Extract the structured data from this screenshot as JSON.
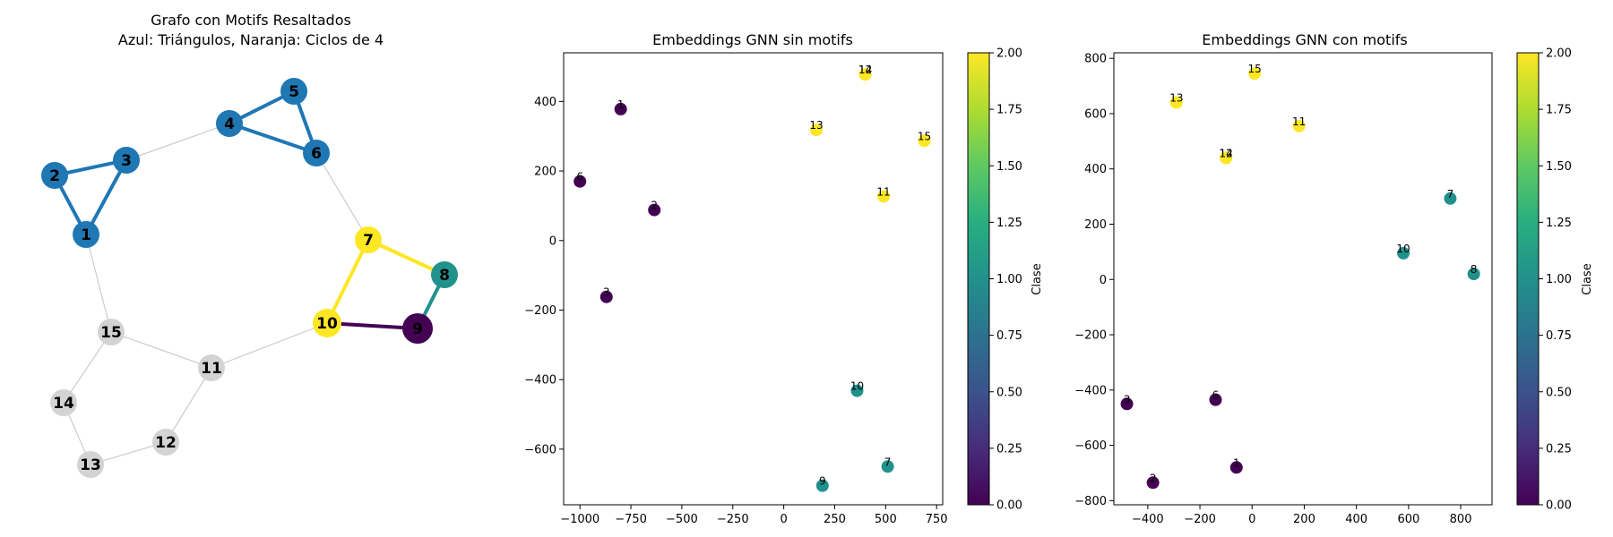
{
  "chart_data": [
    {
      "type": "graph",
      "title_line1": "Grafo con Motifs Resaltados",
      "title_line2": "Azul: Triángulos, Naranja: Ciclos de 4",
      "nodes": [
        {
          "id": "1",
          "color": "#1f77b4"
        },
        {
          "id": "2",
          "color": "#1f77b4"
        },
        {
          "id": "3",
          "color": "#1f77b4"
        },
        {
          "id": "4",
          "color": "#1f77b4"
        },
        {
          "id": "5",
          "color": "#1f77b4"
        },
        {
          "id": "6",
          "color": "#1f77b4"
        },
        {
          "id": "7",
          "color": "#fde725"
        },
        {
          "id": "8",
          "color": "#21918c"
        },
        {
          "id": "9",
          "color": "#440154"
        },
        {
          "id": "10",
          "color": "#fde725"
        },
        {
          "id": "11",
          "color": "#d3d3d3"
        },
        {
          "id": "12",
          "color": "#d3d3d3"
        },
        {
          "id": "13",
          "color": "#d3d3d3"
        },
        {
          "id": "14",
          "color": "#d3d3d3"
        },
        {
          "id": "15",
          "color": "#d3d3d3"
        }
      ],
      "edges": [
        {
          "from": "1",
          "to": "2",
          "color": "#1f77b4"
        },
        {
          "from": "2",
          "to": "3",
          "color": "#1f77b4"
        },
        {
          "from": "1",
          "to": "3",
          "color": "#1f77b4"
        },
        {
          "from": "4",
          "to": "5",
          "color": "#1f77b4"
        },
        {
          "from": "5",
          "to": "6",
          "color": "#1f77b4"
        },
        {
          "from": "4",
          "to": "6",
          "color": "#1f77b4"
        },
        {
          "from": "7",
          "to": "8",
          "color": "#fde725"
        },
        {
          "from": "7",
          "to": "10",
          "color": "#fde725"
        },
        {
          "from": "8",
          "to": "9",
          "color": "#21918c"
        },
        {
          "from": "9",
          "to": "10",
          "color": "#440154"
        },
        {
          "from": "3",
          "to": "4",
          "color": "#cccccc"
        },
        {
          "from": "6",
          "to": "7",
          "color": "#cccccc"
        },
        {
          "from": "1",
          "to": "15",
          "color": "#cccccc"
        },
        {
          "from": "15",
          "to": "11",
          "color": "#cccccc"
        },
        {
          "from": "10",
          "to": "11",
          "color": "#cccccc"
        },
        {
          "from": "15",
          "to": "14",
          "color": "#cccccc"
        },
        {
          "from": "14",
          "to": "13",
          "color": "#cccccc"
        },
        {
          "from": "13",
          "to": "12",
          "color": "#cccccc"
        },
        {
          "from": "11",
          "to": "12",
          "color": "#cccccc"
        }
      ]
    },
    {
      "type": "scatter",
      "title": "Embeddings GNN sin motifs",
      "xlim": [
        -1080,
        780
      ],
      "ylim": [
        -760,
        540
      ],
      "xticks": [
        -1000,
        -750,
        -500,
        -250,
        0,
        250,
        500,
        750
      ],
      "xtick_labels": [
        "−1000",
        "−750",
        "−500",
        "−250",
        "0",
        "250",
        "500",
        "750"
      ],
      "yticks": [
        -600,
        -400,
        -200,
        0,
        200,
        400
      ],
      "ytick_labels": [
        "−600",
        "−400",
        "−200",
        "0",
        "200",
        "400"
      ],
      "points": [
        {
          "label": "1",
          "x": -800,
          "y": 378,
          "class": 0
        },
        {
          "label": "6",
          "x": -1000,
          "y": 170,
          "class": 0
        },
        {
          "label": "2",
          "x": -635,
          "y": 88,
          "class": 0
        },
        {
          "label": "3",
          "x": -870,
          "y": -162,
          "class": 0
        },
        {
          "label": "12",
          "x": 400,
          "y": 478,
          "class": 2
        },
        {
          "label": "14",
          "x": 400,
          "y": 478,
          "class": 2
        },
        {
          "label": "13",
          "x": 160,
          "y": 318,
          "class": 2
        },
        {
          "label": "15",
          "x": 690,
          "y": 287,
          "class": 2
        },
        {
          "label": "11",
          "x": 490,
          "y": 127,
          "class": 2
        },
        {
          "label": "10",
          "x": 360,
          "y": -432,
          "class": 1
        },
        {
          "label": "7",
          "x": 510,
          "y": -650,
          "class": 1
        },
        {
          "label": "9",
          "x": 190,
          "y": -705,
          "class": 1
        }
      ],
      "colorbar": {
        "label": "Clase",
        "min": 0,
        "max": 2,
        "ticks": [
          "0.00",
          "0.25",
          "0.50",
          "0.75",
          "1.00",
          "1.25",
          "1.50",
          "1.75",
          "2.00"
        ]
      }
    },
    {
      "type": "scatter",
      "title": "Embeddings GNN con motifs",
      "xlim": [
        -530,
        920
      ],
      "ylim": [
        -815,
        820
      ],
      "xticks": [
        -400,
        -200,
        0,
        200,
        400,
        600,
        800
      ],
      "xtick_labels": [
        "−400",
        "−200",
        "0",
        "200",
        "400",
        "600",
        "800"
      ],
      "yticks": [
        -800,
        -600,
        -400,
        -200,
        0,
        200,
        400,
        600,
        800
      ],
      "ytick_labels": [
        "−800",
        "−600",
        "−400",
        "−200",
        "0",
        "200",
        "400",
        "600",
        "800"
      ],
      "points": [
        {
          "label": "15",
          "x": 10,
          "y": 745,
          "class": 2
        },
        {
          "label": "13",
          "x": -290,
          "y": 640,
          "class": 2
        },
        {
          "label": "11",
          "x": 180,
          "y": 555,
          "class": 2
        },
        {
          "label": "12",
          "x": -100,
          "y": 440,
          "class": 2
        },
        {
          "label": "14",
          "x": -100,
          "y": 440,
          "class": 2
        },
        {
          "label": "7",
          "x": 760,
          "y": 293,
          "class": 1
        },
        {
          "label": "10",
          "x": 580,
          "y": 95,
          "class": 1
        },
        {
          "label": "8",
          "x": 850,
          "y": 20,
          "class": 1
        },
        {
          "label": "3",
          "x": -480,
          "y": -450,
          "class": 0
        },
        {
          "label": "6",
          "x": -140,
          "y": -435,
          "class": 0
        },
        {
          "label": "1",
          "x": -60,
          "y": -680,
          "class": 0
        },
        {
          "label": "2",
          "x": -380,
          "y": -735,
          "class": 0
        }
      ],
      "colorbar": {
        "label": "Clase",
        "min": 0,
        "max": 2,
        "ticks": [
          "0.00",
          "0.25",
          "0.50",
          "0.75",
          "1.00",
          "1.25",
          "1.50",
          "1.75",
          "2.00"
        ]
      }
    }
  ]
}
